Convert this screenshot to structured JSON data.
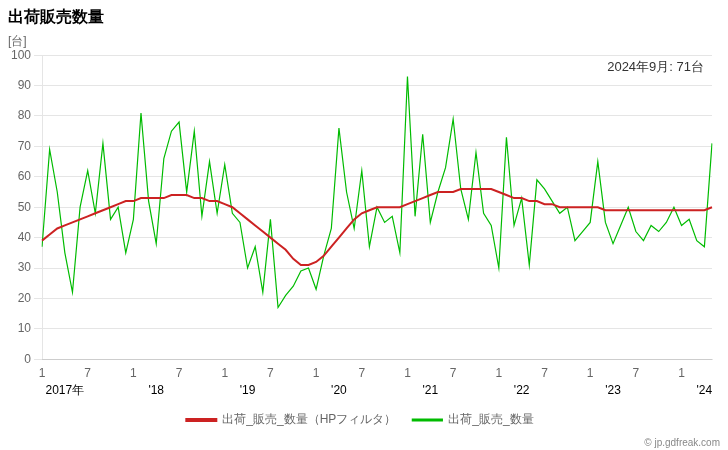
{
  "chart_data": {
    "type": "line",
    "title": "出荷販売数量",
    "y_label": "[台]",
    "annotation": "2024年9月: 71台",
    "watermark": "© jp.gdfreak.com",
    "background_color": "#ffffff",
    "ylim": [
      0,
      100
    ],
    "yticks": [
      0,
      10,
      20,
      30,
      40,
      50,
      60,
      70,
      80,
      90,
      100
    ],
    "grid": "y",
    "legend": "bottom",
    "categories": [
      "1",
      null,
      null,
      null,
      null,
      null,
      "7",
      null,
      null,
      null,
      null,
      null,
      "1",
      null,
      null,
      null,
      null,
      null,
      "7",
      null,
      null,
      null,
      null,
      null,
      "1",
      null,
      null,
      null,
      null,
      null,
      "7",
      null,
      null,
      null,
      null,
      null,
      "1",
      null,
      null,
      null,
      null,
      null,
      "7",
      null,
      null,
      null,
      null,
      null,
      "1",
      null,
      null,
      null,
      null,
      null,
      "7",
      null,
      null,
      null,
      null,
      null,
      "1",
      null,
      null,
      null,
      null,
      null,
      "7",
      null,
      null,
      null,
      null,
      null,
      "1",
      null,
      null,
      null,
      null,
      null,
      "7",
      null,
      null,
      null,
      null,
      null,
      "1",
      null,
      null,
      null,
      null
    ],
    "x_group_labels": [
      null,
      null,
      null,
      "2017年",
      null,
      null,
      null,
      null,
      null,
      null,
      null,
      null,
      null,
      null,
      null,
      "'18",
      null,
      null,
      null,
      null,
      null,
      null,
      null,
      null,
      null,
      null,
      null,
      "'19",
      null,
      null,
      null,
      null,
      null,
      null,
      null,
      null,
      null,
      null,
      null,
      "'20",
      null,
      null,
      null,
      null,
      null,
      null,
      null,
      null,
      null,
      null,
      null,
      "'21",
      null,
      null,
      null,
      null,
      null,
      null,
      null,
      null,
      null,
      null,
      null,
      "'22",
      null,
      null,
      null,
      null,
      null,
      null,
      null,
      null,
      null,
      null,
      null,
      "'23",
      null,
      null,
      null,
      null,
      null,
      null,
      null,
      null,
      null,
      null,
      null,
      "'24",
      null
    ],
    "series": [
      {
        "name": "出荷_販売_数量",
        "color": "#00BB00",
        "values": [
          37,
          69,
          55,
          35,
          22,
          50,
          62,
          48,
          71,
          46,
          50,
          35,
          46,
          81,
          52,
          38,
          66,
          75,
          78,
          55,
          75,
          47,
          65,
          48,
          64,
          48,
          45,
          30,
          37,
          22,
          46,
          17,
          21,
          24,
          29,
          30,
          23,
          34,
          43,
          76,
          55,
          43,
          62,
          37,
          50,
          45,
          47,
          35,
          93,
          47,
          74,
          45,
          55,
          63,
          79,
          56,
          46,
          68,
          48,
          44,
          30,
          73,
          44,
          53,
          31,
          59,
          56,
          52,
          48,
          50,
          39,
          42,
          45,
          65,
          45,
          38,
          44,
          50,
          42,
          39,
          44,
          42,
          45,
          50,
          44,
          46,
          39,
          37,
          71
        ]
      },
      {
        "name": "出荷_販売_数量（HPフィルタ）",
        "color": "#CC2222",
        "values": [
          39,
          41,
          43,
          44,
          45,
          46,
          47,
          48,
          49,
          50,
          51,
          52,
          52,
          53,
          53,
          53,
          53,
          54,
          54,
          54,
          53,
          53,
          52,
          52,
          51,
          50,
          48,
          46,
          44,
          42,
          40,
          38,
          36,
          33,
          31,
          31,
          32,
          34,
          37,
          40,
          43,
          46,
          48,
          49,
          50,
          50,
          50,
          50,
          51,
          52,
          53,
          54,
          55,
          55,
          55,
          56,
          56,
          56,
          56,
          56,
          55,
          54,
          53,
          53,
          52,
          52,
          51,
          51,
          50,
          50,
          50,
          50,
          50,
          50,
          49,
          49,
          49,
          49,
          49,
          49,
          49,
          49,
          49,
          49,
          49,
          49,
          49,
          49,
          50
        ]
      }
    ]
  }
}
